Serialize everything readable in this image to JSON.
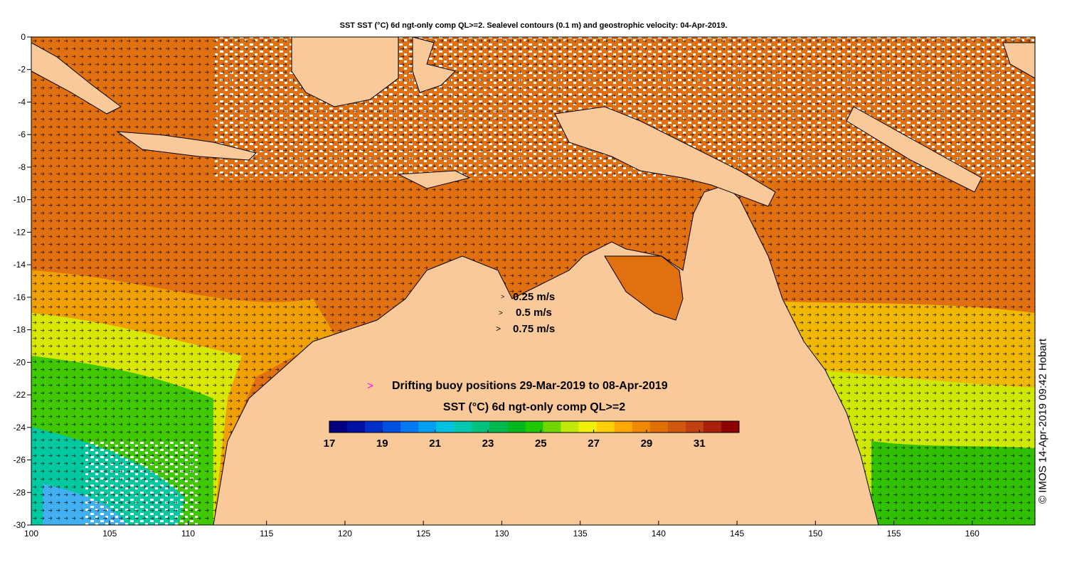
{
  "title": "SST SST (°C) 6d ngt-only comp QL>=2. Sealevel contours (0.1 m) and geostrophic velocity: 04-Apr-2019.",
  "axes": {
    "x_ticks": [
      100,
      105,
      110,
      115,
      120,
      125,
      130,
      135,
      140,
      145,
      150,
      155,
      160
    ],
    "y_ticks": [
      0,
      -2,
      -4,
      -6,
      -8,
      -10,
      -12,
      -14,
      -16,
      -18,
      -20,
      -22,
      -24,
      -26,
      -28,
      -30
    ],
    "lon_range": [
      100,
      164
    ],
    "lat_range": [
      -30,
      0
    ]
  },
  "velocity_legend": [
    {
      "label": "0.25 m/s",
      "arrow": ">"
    },
    {
      "label": "0.5 m/s",
      "arrow": ">"
    },
    {
      "label": "0.75 m/s",
      "arrow": ">"
    }
  ],
  "buoy_legend": {
    "marker": ">",
    "label": "Drifting buoy positions 29-Mar-2019 to 08-Apr-2019",
    "color": "#ff00ff"
  },
  "colorbar": {
    "title": "SST (°C) 6d ngt-only comp QL>=2",
    "range": [
      17,
      32.5
    ],
    "tick_labels": [
      "17",
      "19",
      "21",
      "23",
      "25",
      "27",
      "29",
      "31"
    ],
    "colors": [
      "#000080",
      "#0010a0",
      "#0030c8",
      "#0050e0",
      "#0078f0",
      "#00a0f0",
      "#00c0e0",
      "#00c8b0",
      "#00c080",
      "#00b850",
      "#00b820",
      "#20c800",
      "#70d800",
      "#c0e800",
      "#f0f000",
      "#ffd000",
      "#ffa800",
      "#f08800",
      "#e07000",
      "#d05810",
      "#c04010",
      "#a82008",
      "#900000"
    ]
  },
  "land_color": "#fac999",
  "stamp": "© IMOS 14-Apr-2019 09:42 Hobart"
}
